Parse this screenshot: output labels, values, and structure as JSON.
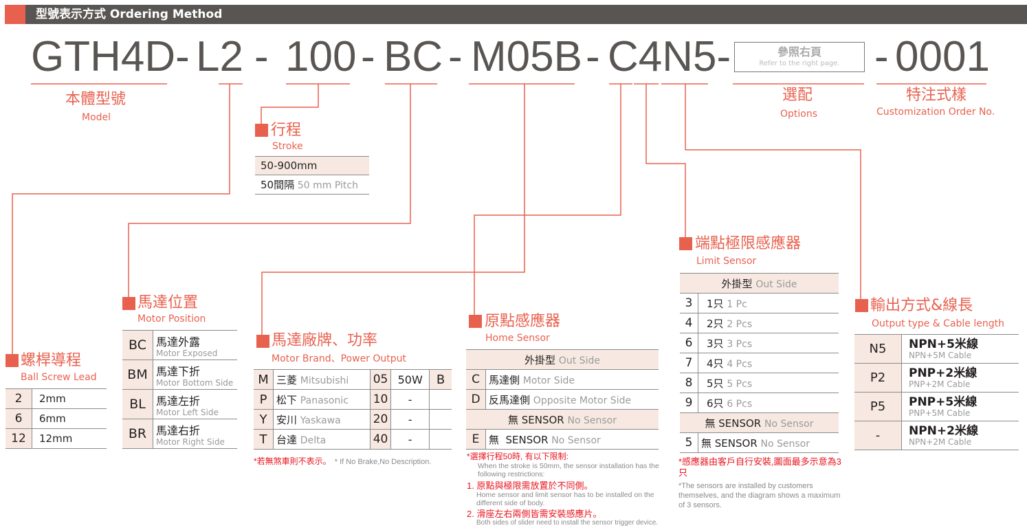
{
  "header": {
    "title": "型號表示方式 Ordering Method"
  },
  "code": {
    "model": "GTH4D-",
    "lead": "L2",
    "dash": "-",
    "stroke": "100",
    "motor_pos": "BC",
    "motor": "M05B",
    "sensors": "C4N5-",
    "options_box": {
      "zh": "參照右頁",
      "en": "Refer to the right page."
    },
    "custom": "0001"
  },
  "labels": {
    "model": {
      "zh": "本體型號",
      "en": "Model"
    },
    "options": {
      "zh": "選配",
      "en": "Options"
    },
    "custom": {
      "zh": "特注式樣",
      "en": "Customization Order No."
    }
  },
  "stroke": {
    "zh": "行程",
    "en": "Stroke",
    "rows": [
      [
        "50-900mm",
        ""
      ],
      [
        "50間隔",
        "50 mm Pitch"
      ]
    ]
  },
  "ball_screw": {
    "zh": "螺桿導程",
    "en": "Ball Screw Lead",
    "rows": [
      [
        "2",
        "2mm"
      ],
      [
        "6",
        "6mm"
      ],
      [
        "12",
        "12mm"
      ]
    ]
  },
  "motor_position": {
    "zh": "馬達位置",
    "en": "Motor Position",
    "rows": [
      [
        "BC",
        "馬達外露",
        "Motor Exposed"
      ],
      [
        "BM",
        "馬達下折",
        "Motor Bottom Side"
      ],
      [
        "BL",
        "馬達左折",
        "Motor Left Side"
      ],
      [
        "BR",
        "馬達右折",
        "Motor Right Side"
      ]
    ]
  },
  "motor_brand": {
    "zh": "馬達廠牌、功率",
    "en": "Motor Brand、Power Output",
    "rows": [
      [
        "M",
        "三菱",
        "Mitsubishi",
        "05",
        "50W",
        "B"
      ],
      [
        "P",
        "松下",
        "Panasonic",
        "10",
        "-",
        ""
      ],
      [
        "Y",
        "安川",
        "Yaskawa",
        "20",
        "-",
        ""
      ],
      [
        "T",
        "台達",
        "Delta",
        "40",
        "-",
        ""
      ]
    ],
    "note_zh": "*若無煞車則不表示。",
    "note_en": "* If No Brake,No Description."
  },
  "home_sensor": {
    "zh": "原點感應器",
    "en": "Home Sensor",
    "header": {
      "zh": "外掛型",
      "en": "Out Side"
    },
    "rows": [
      [
        "C",
        "馬達側",
        "Motor Side"
      ],
      [
        "D",
        "反馬達側",
        "Opposite Motor Side"
      ]
    ],
    "none_header": {
      "zh": "無 SENSOR",
      "en": "No Sensor"
    },
    "none_row": [
      "E",
      "無  SENSOR",
      "No Sensor"
    ],
    "notes": [
      {
        "zh": "*選擇行程50時, 有以下限制:",
        "en": "When the stroke is 50mm, the sensor installation has the following restrictions:"
      },
      {
        "zh": "1. 原點與極限需放置於不同側。",
        "en": "Home sensor and limit sensor has to be installed on the different side of body."
      },
      {
        "zh": "2. 滑座左右兩側皆需安裝感應片。",
        "en": "Both sides of slider need to install the sensor trigger device."
      }
    ]
  },
  "limit_sensor": {
    "zh": "端點極限感應器",
    "en": "Limit Sensor",
    "header": {
      "zh": "外掛型",
      "en": "Out Side"
    },
    "rows": [
      [
        "3",
        "1只",
        "1 Pc"
      ],
      [
        "4",
        "2只",
        "2 Pcs"
      ],
      [
        "6",
        "3只",
        "3 Pcs"
      ],
      [
        "7",
        "4只",
        "4 Pcs"
      ],
      [
        "8",
        "5只",
        "5 Pcs"
      ],
      [
        "9",
        "6只",
        "6 Pcs"
      ]
    ],
    "none_header": {
      "zh": "無 SENSOR",
      "en": "No Sensor"
    },
    "none_row": [
      "5",
      "無 SENSOR",
      "No Sensor"
    ],
    "note_zh": "*感應器由客戶自行安裝,圖面最多示意為3只",
    "note_en": "*The sensors are installed by customers themselves, and the diagram shows a maximum of 3 sensors."
  },
  "output": {
    "zh": "輸出方式&線長",
    "en": "Output type & Cable length",
    "rows": [
      [
        "N5",
        "NPN+5米線",
        "NPN+5M Cable"
      ],
      [
        "P2",
        "PNP+2米線",
        "PNP+2M Cable"
      ],
      [
        "P5",
        "PNP+5米線",
        "PNP+5M Cable"
      ],
      [
        "-",
        "NPN+2米線",
        "NPN+2M Cable"
      ]
    ]
  },
  "colors": {
    "accent": "#e8614f",
    "header_bg": "#595552",
    "table_shade": "#f7e9e1",
    "note_red": "#e8141e"
  }
}
